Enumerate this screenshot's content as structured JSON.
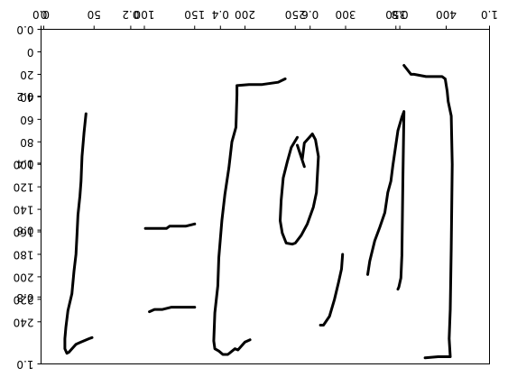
{
  "chart_data": {
    "type": "line",
    "title": "",
    "grid": false,
    "axes": [
      {
        "role": "normalized",
        "x_ticks": [
          "0.0",
          "0.2",
          "0.4",
          "0.6",
          "0.8",
          "1.0"
        ],
        "y_ticks": [
          "0.0",
          "0.2",
          "0.4",
          "0.6",
          "0.8",
          "1.0"
        ],
        "xlim": [
          0,
          1
        ],
        "ylim": [
          0,
          1
        ],
        "y_inverted": true,
        "orientation": "mirrored"
      },
      {
        "role": "pixel",
        "x_ticks": [
          "0",
          "50",
          "100",
          "150",
          "200",
          "250",
          "300",
          "350",
          "400"
        ],
        "y_ticks": [
          "0",
          "20",
          "40",
          "60",
          "80",
          "100",
          "120",
          "140",
          "160",
          "180",
          "200",
          "220",
          "240"
        ],
        "xlim": [
          0,
          400
        ],
        "ylim": [
          0,
          255
        ],
        "y_inverted": true,
        "orientation": "mirrored"
      }
    ],
    "series": [
      {
        "x": [
          42,
          40,
          38,
          37,
          36,
          34,
          33,
          32,
          30,
          28,
          24,
          22,
          21,
          21,
          22,
          23,
          25,
          27,
          32,
          37,
          45,
          48
        ],
        "y": [
          55,
          72,
          93,
          115,
          128,
          145,
          163,
          180,
          195,
          215,
          230,
          245,
          255,
          264,
          266,
          268,
          267,
          265,
          260,
          258,
          255,
          254
        ]
      },
      {
        "x": [
          101,
          122,
          125,
          141,
          150
        ],
        "y": [
          157,
          157,
          155,
          155,
          153
        ]
      },
      {
        "x": [
          105,
          110,
          118,
          127,
          150
        ],
        "y": [
          231,
          229,
          229,
          227,
          227
        ]
      },
      {
        "x": [
          240,
          233,
          217,
          204,
          192,
          192,
          191,
          187,
          184,
          180,
          177,
          174,
          173,
          170,
          169,
          170,
          174,
          178,
          183,
          190,
          193,
          200,
          205
        ],
        "y": [
          24,
          27,
          29,
          29,
          30,
          38,
          67,
          80,
          103,
          127,
          150,
          183,
          208,
          232,
          257,
          264,
          266,
          269,
          269,
          264,
          265,
          258,
          256
        ]
      },
      {
        "x": [
          252,
          246,
          242,
          238,
          236,
          235,
          237,
          241,
          247,
          250,
          256,
          262,
          268,
          271,
          272,
          273,
          270,
          267,
          265,
          259,
          257
        ],
        "y": [
          76,
          85,
          98,
          112,
          132,
          150,
          161,
          170,
          171,
          170,
          163,
          153,
          138,
          125,
          109,
          93,
          78,
          73,
          75,
          81,
          95
        ]
      },
      {
        "x": [
          259,
          252
        ],
        "y": [
          102,
          83
        ]
      },
      {
        "x": [
          297,
          296,
          293,
          289,
          284,
          278,
          275
        ],
        "y": [
          180,
          193,
          205,
          220,
          235,
          243,
          243
        ]
      },
      {
        "x": [
          322,
          324,
          329,
          334,
          339,
          342,
          345,
          347,
          352,
          356,
          358,
          357,
          356,
          355,
          353,
          352
        ],
        "y": [
          198,
          186,
          168,
          156,
          143,
          125,
          115,
          101,
          70,
          58,
          53,
          109,
          181,
          201,
          209,
          211
        ]
      },
      {
        "x": [
          358,
          365,
          368,
          380,
          396,
          399,
          401,
          402,
          405,
          406,
          405,
          404,
          403,
          404,
          392,
          379
        ],
        "y": [
          12,
          20,
          20,
          22,
          22,
          24,
          35,
          44,
          57,
          100,
          174,
          229,
          255,
          271,
          271,
          272
        ]
      }
    ]
  }
}
